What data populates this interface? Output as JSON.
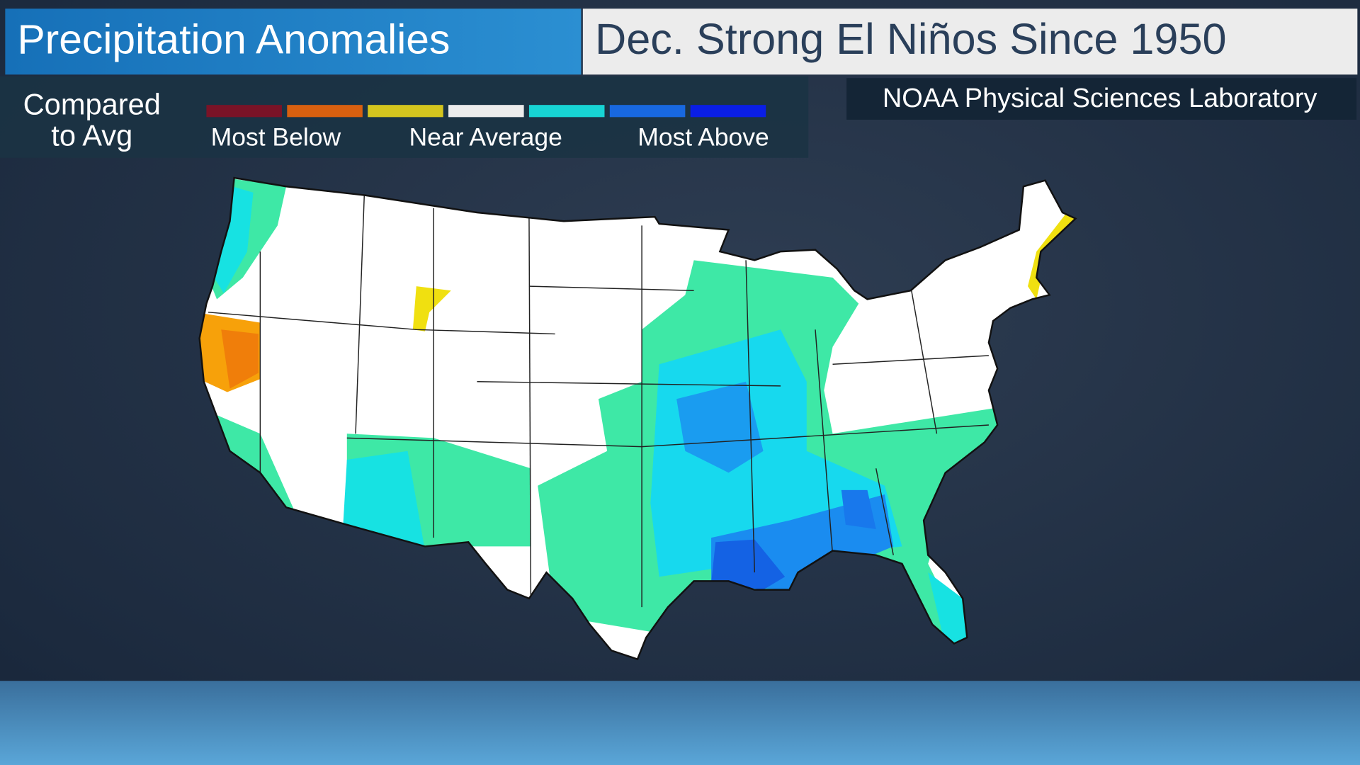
{
  "header": {
    "title": "Precipitation Anomalies",
    "subtitle": "Dec. Strong El Niños Since 1950"
  },
  "legend": {
    "heading": [
      "Compared",
      "to Avg"
    ],
    "colors": [
      "#7a1327",
      "#d9600f",
      "#d4c51e",
      "#ececec",
      "#17d4d4",
      "#1868e0",
      "#0a1ee6"
    ],
    "labels": [
      "Most Below",
      "Near Average",
      "Most Above"
    ]
  },
  "source": "NOAA Physical Sciences Laboratory"
}
